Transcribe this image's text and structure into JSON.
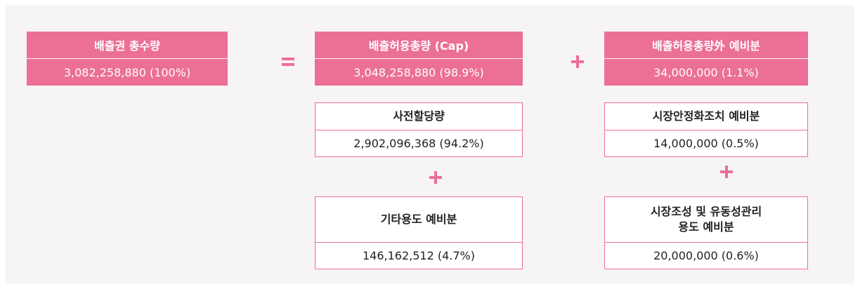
{
  "totals": [
    {
      "title": "배출권 총수량",
      "value": "3,082,258,880 (100%)"
    },
    {
      "title": "배출허용총량 (Cap)",
      "value": "3,048,258,880 (98.9%)"
    },
    {
      "title": "배출허용총량外 예비분",
      "value": "34,000,000 (1.1%)"
    }
  ],
  "cap_parts": [
    {
      "title": "사전할당량",
      "value": "2,902,096,368 (94.2%)"
    },
    {
      "title": "기타용도 예비분",
      "value": "146,162,512 (4.7%)"
    }
  ],
  "reserve_parts": [
    {
      "title": "시장안정화조치 예비분",
      "value": "14,000,000 (0.5%)"
    },
    {
      "title": "시장조성 및 유동성관리\n용도 예비분",
      "value": "20,000,000 (0.6%)"
    }
  ]
}
